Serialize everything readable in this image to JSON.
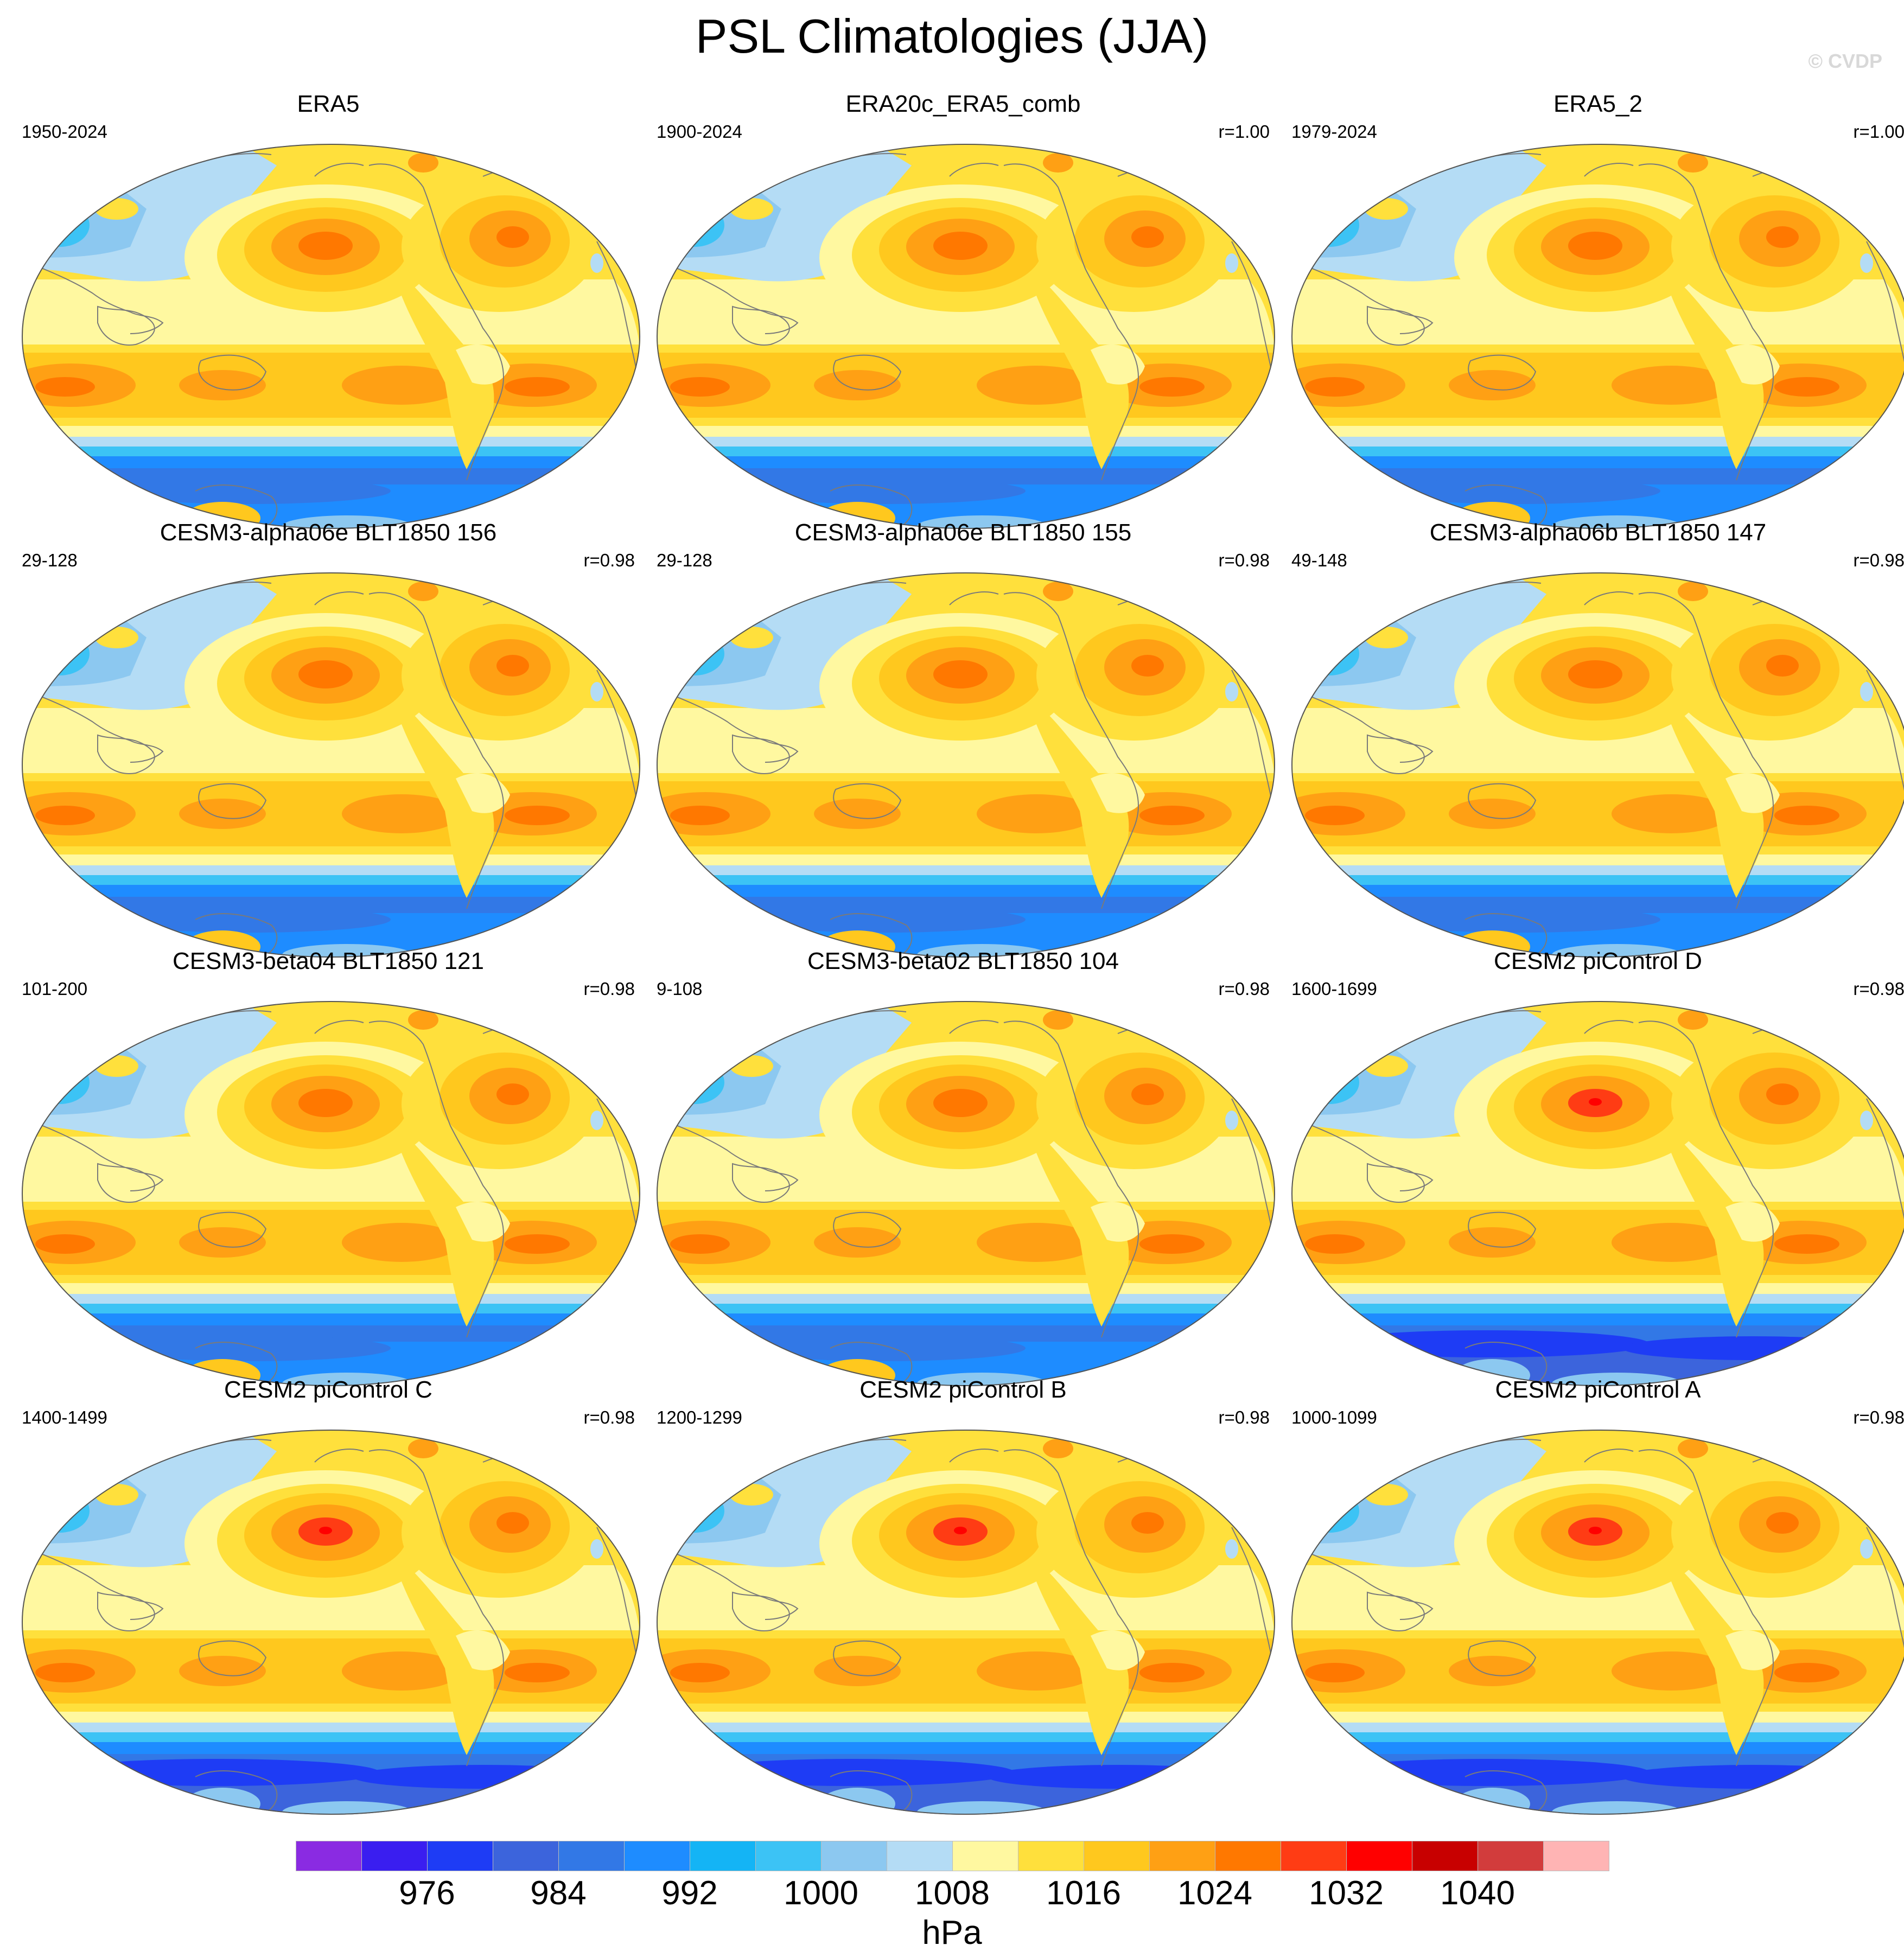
{
  "title": "PSL Climatologies (JJA)",
  "watermark": "© CVDP",
  "panels": [
    {
      "title": "ERA5",
      "years": "1950-2024",
      "r": "",
      "variant": 0
    },
    {
      "title": "ERA20c_ERA5_comb",
      "years": "1900-2024",
      "r": "r=1.00",
      "variant": 0
    },
    {
      "title": "ERA5_2",
      "years": "1979-2024",
      "r": "r=1.00",
      "variant": 0
    },
    {
      "title": "CESM3-alpha06e BLT1850 156",
      "years": "29-128",
      "r": "r=0.98",
      "variant": 1
    },
    {
      "title": "CESM3-alpha06e BLT1850 155",
      "years": "29-128",
      "r": "r=0.98",
      "variant": 1
    },
    {
      "title": "CESM3-alpha06b BLT1850 147",
      "years": "49-148",
      "r": "r=0.98",
      "variant": 1
    },
    {
      "title": "CESM3-beta04 BLT1850 121",
      "years": "101-200",
      "r": "r=0.98",
      "variant": 1
    },
    {
      "title": "CESM3-beta02 BLT1850 104",
      "years": "9-108",
      "r": "r=0.98",
      "variant": 1
    },
    {
      "title": "CESM2 piControl D",
      "years": "1600-1699",
      "r": "r=0.98",
      "variant": 2
    },
    {
      "title": "CESM2 piControl C",
      "years": "1400-1499",
      "r": "r=0.98",
      "variant": 2
    },
    {
      "title": "CESM2 piControl B",
      "years": "1200-1299",
      "r": "r=0.98",
      "variant": 2
    },
    {
      "title": "CESM2 piControl A",
      "years": "1000-1099",
      "r": "r=0.98",
      "variant": 2
    }
  ],
  "colorbar": {
    "units": "hPa",
    "colors": [
      "#8a2be2",
      "#3a1ef0",
      "#1e3cf5",
      "#3c64dc",
      "#3278e6",
      "#1e8cff",
      "#14b4f5",
      "#3cc3f5",
      "#8cc8f0",
      "#b4dcf5",
      "#fff8a0",
      "#ffe03c",
      "#ffc81e",
      "#ffa014",
      "#ff7800",
      "#ff3c14",
      "#ff0000",
      "#c80000",
      "#d23c3c",
      "#ffb4b4"
    ],
    "labels": [
      "976",
      "984",
      "992",
      "1000",
      "1008",
      "1016",
      "1024",
      "1032",
      "1040"
    ]
  }
}
